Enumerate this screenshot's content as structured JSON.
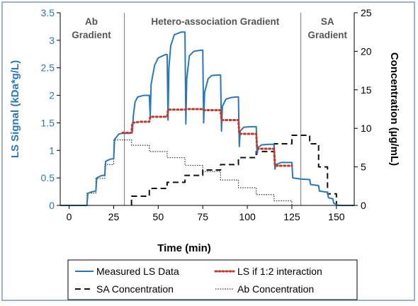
{
  "chart_data": {
    "type": "line",
    "xlabel": "Time (min)",
    "ylabel_left": "LS Signal (kDa*g/L)",
    "ylabel_right": "Concentration (µg/mL)",
    "xlim": [
      -5,
      160
    ],
    "ylim_left": [
      0,
      3.5
    ],
    "ylim_right": [
      0,
      25
    ],
    "x_ticks": [
      0,
      25,
      50,
      75,
      100,
      125,
      150
    ],
    "y_left_ticks": [
      0,
      0.5,
      1,
      1.5,
      2,
      2.5,
      3,
      3.5
    ],
    "y_right_ticks": [
      0,
      5,
      10,
      15,
      20,
      25
    ],
    "x_tick_labels": [
      "0",
      "25",
      "50",
      "75",
      "100",
      "125",
      "150"
    ],
    "y_left_tick_labels": [
      "0",
      "0.5",
      "1",
      "1.5",
      "2",
      "2.5",
      "3",
      "3.5"
    ],
    "y_right_tick_labels": [
      "0",
      "5",
      "10",
      "15",
      "20",
      "25"
    ],
    "region_dividers": [
      31,
      130
    ],
    "regions": [
      {
        "label_line1": "Ab",
        "label_line2": "Gradient",
        "x_center": 12.5
      },
      {
        "label_line1": "Hetero-association Gradient",
        "label_line2": "",
        "x_center": 82
      },
      {
        "label_line1": "SA",
        "label_line2": "Gradient",
        "x_center": 145
      }
    ],
    "grid": false,
    "legend_position": "bottom",
    "series": [
      {
        "name": "Measured LS Data",
        "axis": "left",
        "style": "solid",
        "color": "#2b78b8",
        "points": [
          [
            -5,
            0.0
          ],
          [
            10,
            0.0
          ],
          [
            10.5,
            0.22
          ],
          [
            13,
            0.25
          ],
          [
            15,
            0.26
          ],
          [
            15.5,
            0.5
          ],
          [
            18,
            0.54
          ],
          [
            20,
            0.55
          ],
          [
            20.5,
            0.8
          ],
          [
            23,
            0.84
          ],
          [
            25,
            0.85
          ],
          [
            25.5,
            1.2
          ],
          [
            28,
            1.3
          ],
          [
            30,
            1.31
          ],
          [
            34,
            1.31
          ],
          [
            35.5,
            1.33
          ],
          [
            36,
            1.62
          ],
          [
            37,
            1.88
          ],
          [
            38.5,
            1.97
          ],
          [
            42,
            2.0
          ],
          [
            45,
            2.0
          ],
          [
            45.5,
            1.6
          ],
          [
            46,
            2.2
          ],
          [
            48,
            2.55
          ],
          [
            50,
            2.68
          ],
          [
            54,
            2.74
          ],
          [
            55,
            2.74
          ],
          [
            55.5,
            1.55
          ],
          [
            56,
            2.5
          ],
          [
            57,
            2.9
          ],
          [
            59,
            3.1
          ],
          [
            63,
            3.15
          ],
          [
            65,
            3.15
          ],
          [
            65.5,
            1.48
          ],
          [
            66,
            2.3
          ],
          [
            67.5,
            2.72
          ],
          [
            70,
            2.8
          ],
          [
            74,
            2.82
          ],
          [
            75,
            2.82
          ],
          [
            75.5,
            1.5
          ],
          [
            76,
            2.05
          ],
          [
            78,
            2.3
          ],
          [
            80,
            2.36
          ],
          [
            84,
            2.37
          ],
          [
            85,
            2.37
          ],
          [
            85.5,
            1.35
          ],
          [
            86,
            1.8
          ],
          [
            88,
            1.93
          ],
          [
            91,
            1.96
          ],
          [
            94,
            1.97
          ],
          [
            95,
            1.97
          ],
          [
            95.5,
            1.07
          ],
          [
            96,
            1.35
          ],
          [
            98,
            1.42
          ],
          [
            102,
            1.43
          ],
          [
            105,
            1.43
          ],
          [
            105.5,
            0.93
          ],
          [
            106,
            1.05
          ],
          [
            108,
            1.1
          ],
          [
            112,
            1.11
          ],
          [
            115,
            1.11
          ],
          [
            115.5,
            0.66
          ],
          [
            116,
            0.74
          ],
          [
            119,
            0.78
          ],
          [
            122,
            0.78
          ],
          [
            125,
            0.78
          ],
          [
            125.5,
            0.5
          ],
          [
            130,
            0.48
          ],
          [
            135,
            0.47
          ],
          [
            135.5,
            0.38
          ],
          [
            140,
            0.36
          ],
          [
            140.5,
            0.26
          ],
          [
            145,
            0.24
          ],
          [
            145.5,
            0.14
          ],
          [
            148,
            0.12
          ],
          [
            148.5,
            0.04
          ],
          [
            150,
            0.02
          ],
          [
            151,
            0.0
          ],
          [
            160,
            0.0
          ]
        ]
      },
      {
        "name": "LS if 1:2 interaction",
        "axis": "left",
        "style": "dotted",
        "color": "#c0392b",
        "points": [
          [
            30,
            1.32
          ],
          [
            35,
            1.32
          ],
          [
            35.5,
            1.5
          ],
          [
            40,
            1.52
          ],
          [
            45,
            1.52
          ],
          [
            45.5,
            1.61
          ],
          [
            55,
            1.61
          ],
          [
            55.5,
            1.74
          ],
          [
            65,
            1.74
          ],
          [
            65.5,
            1.75
          ],
          [
            75,
            1.75
          ],
          [
            75.5,
            1.73
          ],
          [
            85,
            1.73
          ],
          [
            85.5,
            1.55
          ],
          [
            95,
            1.55
          ],
          [
            95.5,
            1.3
          ],
          [
            105,
            1.3
          ],
          [
            105.5,
            1.03
          ],
          [
            115,
            1.03
          ],
          [
            115.5,
            0.72
          ],
          [
            125,
            0.72
          ]
        ]
      },
      {
        "name": "SA Concentration",
        "axis": "right",
        "style": "dashed",
        "color": "#111111",
        "points": [
          [
            35,
            0.0
          ],
          [
            35,
            1.2
          ],
          [
            45,
            1.2
          ],
          [
            45,
            2.2
          ],
          [
            55,
            2.2
          ],
          [
            55,
            3.0
          ],
          [
            65,
            3.0
          ],
          [
            65,
            3.9
          ],
          [
            75,
            3.9
          ],
          [
            75,
            4.6
          ],
          [
            85,
            4.6
          ],
          [
            85,
            5.3
          ],
          [
            95,
            5.3
          ],
          [
            95,
            6.2
          ],
          [
            105,
            6.2
          ],
          [
            105,
            7.0
          ],
          [
            115,
            7.0
          ],
          [
            115,
            8.0
          ],
          [
            125,
            8.0
          ],
          [
            125,
            9.1
          ],
          [
            135,
            9.1
          ],
          [
            135,
            8.0
          ],
          [
            140,
            8.0
          ],
          [
            140,
            5.0
          ],
          [
            145,
            5.0
          ],
          [
            145,
            1.5
          ],
          [
            150,
            1.5
          ],
          [
            150,
            0.0
          ]
        ]
      },
      {
        "name": "Ab Concentration",
        "axis": "right",
        "style": "dotted-thin",
        "color": "#333333",
        "points": [
          [
            10,
            0.0
          ],
          [
            10,
            1.6
          ],
          [
            15,
            1.6
          ],
          [
            15,
            3.5
          ],
          [
            20,
            3.5
          ],
          [
            20,
            5.3
          ],
          [
            25,
            5.3
          ],
          [
            25,
            8.5
          ],
          [
            30,
            8.5
          ],
          [
            35,
            8.5
          ],
          [
            35,
            7.8
          ],
          [
            45,
            7.8
          ],
          [
            45,
            7.0
          ],
          [
            55,
            7.0
          ],
          [
            55,
            6.2
          ],
          [
            65,
            6.2
          ],
          [
            65,
            5.2
          ],
          [
            75,
            5.2
          ],
          [
            75,
            4.4
          ],
          [
            85,
            4.4
          ],
          [
            85,
            3.3
          ],
          [
            95,
            3.3
          ],
          [
            95,
            2.3
          ],
          [
            105,
            2.3
          ],
          [
            105,
            1.4
          ],
          [
            115,
            1.4
          ],
          [
            115,
            0.6
          ],
          [
            125,
            0.6
          ],
          [
            125,
            0.0
          ]
        ]
      }
    ]
  }
}
